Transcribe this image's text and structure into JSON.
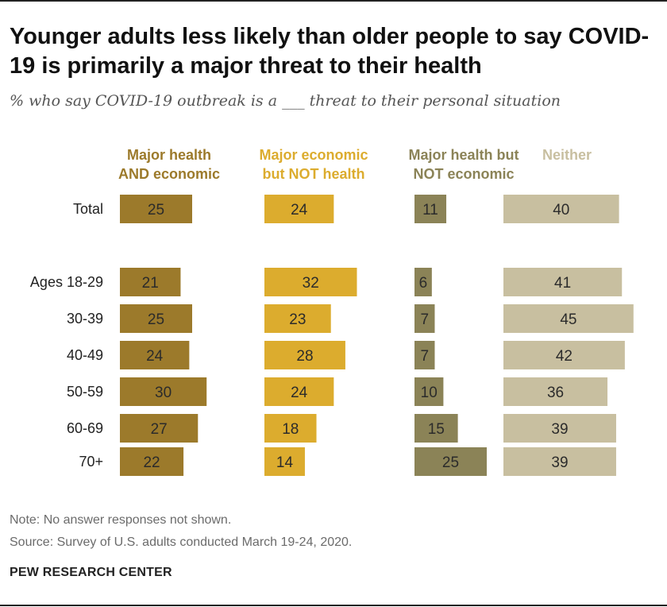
{
  "header": {
    "title": "Younger adults less likely than older people to say COVID-19 is primarily a major threat to their health",
    "subtitle": "% who say COVID-19 outbreak is a ___ threat to their personal situation"
  },
  "chart_data": {
    "type": "bar",
    "orientation": "horizontal",
    "layout": "small-multiples",
    "categories": [
      "Total",
      "Ages 18-29",
      "30-39",
      "40-49",
      "50-59",
      "60-69",
      "70+"
    ],
    "series": [
      {
        "name": "Major health AND economic",
        "label_lines": [
          "Major health",
          "AND economic"
        ],
        "color": "#9c7a2b",
        "values": [
          25,
          21,
          25,
          24,
          30,
          27,
          22
        ]
      },
      {
        "name": "Major economic but NOT health",
        "label_lines": [
          "Major economic",
          "but NOT health"
        ],
        "color": "#dcac2e",
        "values": [
          24,
          32,
          23,
          28,
          24,
          18,
          14
        ]
      },
      {
        "name": "Major health but NOT economic",
        "label_lines": [
          "Major health but",
          "NOT economic"
        ],
        "color": "#8b8357",
        "values": [
          11,
          6,
          7,
          7,
          10,
          15,
          25
        ]
      },
      {
        "name": "Neither",
        "label_lines": [
          "Neither"
        ],
        "color": "#c8bfa0",
        "values": [
          40,
          41,
          45,
          42,
          36,
          39,
          39
        ]
      }
    ],
    "data_labels": true,
    "xlabel": "",
    "ylabel": ""
  },
  "footer": {
    "note": "Note: No answer responses not shown.",
    "source": "Source: Survey of U.S. adults conducted March 19-24, 2020.",
    "org": "PEW RESEARCH CENTER"
  }
}
